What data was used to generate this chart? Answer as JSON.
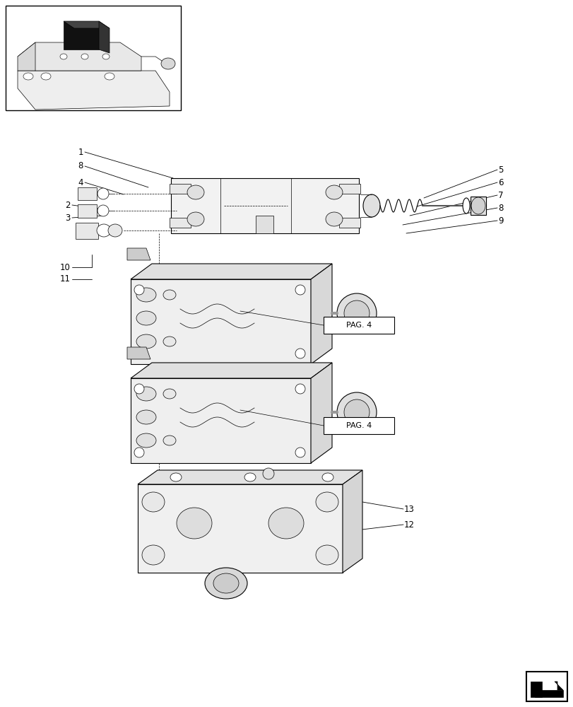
{
  "bg_color": "#ffffff",
  "fig_width": 8.12,
  "fig_height": 10.0,
  "lw": 0.8,
  "lw_thin": 0.5,
  "lw_thick": 1.2,
  "gray_light": "#f0f0f0",
  "gray_mid": "#d8d8d8",
  "gray_dark": "#b0b0b0",
  "black": "#000000",
  "white": "#ffffff"
}
